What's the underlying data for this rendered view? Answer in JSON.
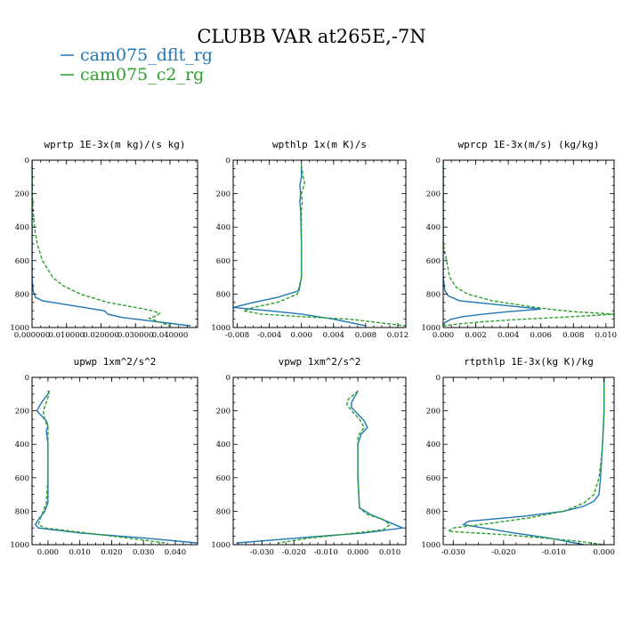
{
  "figure": {
    "title": "CLUBB VAR at265E,-7N"
  },
  "legend": [
    {
      "label": "cam075_dflt_rg",
      "color": "#1f77b4",
      "dash": "solid"
    },
    {
      "label": "cam075_c2_rg",
      "color": "#2ca02c",
      "dash": "dashed"
    }
  ],
  "chart_data": [
    {
      "type": "line",
      "title": "wprtp  1E-3x(m kg)/(s kg)",
      "xlim": [
        0,
        0.048
      ],
      "ylim": [
        1000,
        0
      ],
      "xticks": [
        0.0,
        0.01,
        0.02,
        0.03,
        0.04
      ],
      "xticklabels": [
        "0.000000",
        "0.010000",
        "0.020000",
        "0.030000",
        "0.040000"
      ],
      "yticks": [
        0,
        200,
        400,
        600,
        800,
        1000
      ],
      "yticklabels": [
        "0",
        "200",
        "400",
        "600",
        "800",
        "1000"
      ],
      "series": [
        {
          "name": "cam075_dflt_rg",
          "y": [
            0,
            200,
            400,
            600,
            700,
            780,
            820,
            840,
            870,
            900,
            920,
            940,
            960,
            990
          ],
          "x": [
            0.0,
            0.0,
            0.0,
            0.0,
            0.0,
            0.0003,
            0.001,
            0.003,
            0.012,
            0.021,
            0.022,
            0.026,
            0.034,
            0.046
          ]
        },
        {
          "name": "cam075_c2_rg",
          "y": [
            0,
            200,
            300,
            400,
            500,
            600,
            700,
            750,
            800,
            850,
            880,
            900,
            915,
            930,
            945,
            960,
            990
          ],
          "x": [
            0.0,
            0.0001,
            0.0003,
            0.0007,
            0.0015,
            0.003,
            0.006,
            0.009,
            0.014,
            0.022,
            0.03,
            0.035,
            0.037,
            0.036,
            0.034,
            0.036,
            0.04
          ]
        }
      ]
    },
    {
      "type": "line",
      "title": "wpthlp  1x(m K)/s",
      "xlim": [
        -0.0085,
        0.013
      ],
      "ylim": [
        1000,
        0
      ],
      "xticks": [
        -0.008,
        -0.004,
        0.0,
        0.004,
        0.008,
        0.012
      ],
      "xticklabels": [
        "-0.008",
        "-0.004",
        "0.000",
        "0.004",
        "0.008",
        "0.012"
      ],
      "yticks": [
        0,
        200,
        400,
        600,
        800,
        1000
      ],
      "yticklabels": [
        "0",
        "200",
        "400",
        "600",
        "800",
        "1000"
      ],
      "series": [
        {
          "name": "cam075_dflt_rg",
          "y": [
            30,
            100,
            150,
            200,
            250,
            300,
            500,
            700,
            780,
            820,
            850,
            880,
            900,
            920,
            950,
            990
          ],
          "x": [
            0.0,
            0.0,
            -0.0002,
            -0.0001,
            -0.0002,
            -0.0001,
            0.0,
            0.0,
            -0.0003,
            -0.003,
            -0.006,
            -0.0085,
            -0.004,
            0.0,
            0.004,
            0.008
          ]
        },
        {
          "name": "cam075_c2_rg",
          "y": [
            30,
            100,
            130,
            150,
            200,
            250,
            300,
            500,
            700,
            800,
            850,
            880,
            900,
            920,
            935,
            950,
            990
          ],
          "x": [
            0.0,
            0.0002,
            0.0004,
            0.0003,
            0.0,
            0.0001,
            0.0,
            0.0,
            0.0,
            -0.0005,
            -0.003,
            -0.006,
            -0.0072,
            -0.005,
            0.0,
            0.006,
            0.013
          ]
        }
      ]
    },
    {
      "type": "line",
      "title": "wprcp  1E-3x(m/s) (kg/kg)",
      "xlim": [
        0,
        0.0105
      ],
      "ylim": [
        1000,
        0
      ],
      "xticks": [
        0.0,
        0.002,
        0.004,
        0.006,
        0.008,
        0.01
      ],
      "xticklabels": [
        "0.000",
        "0.002",
        "0.004",
        "0.006",
        "0.008",
        "0.010"
      ],
      "yticks": [
        0,
        200,
        400,
        600,
        800,
        1000
      ],
      "yticklabels": [
        "0",
        "200",
        "400",
        "600",
        "800",
        "1000"
      ],
      "series": [
        {
          "name": "cam075_dflt_rg",
          "y": [
            0,
            500,
            700,
            780,
            810,
            840,
            860,
            880,
            890,
            905,
            920,
            935,
            950,
            970,
            990
          ],
          "x": [
            0.0,
            0.0,
            0.0,
            0.0001,
            0.0003,
            0.001,
            0.003,
            0.005,
            0.006,
            0.004,
            0.0025,
            0.0012,
            0.0005,
            0.0001,
            0.0
          ]
        },
        {
          "name": "cam075_c2_rg",
          "y": [
            0,
            500,
            600,
            700,
            760,
            800,
            840,
            870,
            890,
            905,
            920,
            935,
            950,
            965,
            980,
            990
          ],
          "x": [
            0.0,
            0.0,
            0.0002,
            0.0004,
            0.0008,
            0.0015,
            0.003,
            0.005,
            0.0065,
            0.008,
            0.0105,
            0.008,
            0.005,
            0.0025,
            0.0008,
            0.0
          ]
        }
      ]
    },
    {
      "type": "line",
      "title": "upwp  1xm^2/s^2",
      "xlim": [
        -0.005,
        0.047
      ],
      "ylim": [
        1000,
        0
      ],
      "xticks": [
        0.0,
        0.01,
        0.02,
        0.03,
        0.04
      ],
      "xticklabels": [
        "0.000",
        "0.010",
        "0.020",
        "0.030",
        "0.040"
      ],
      "yticks": [
        0,
        200,
        400,
        600,
        800,
        1000
      ],
      "yticklabels": [
        "0",
        "200",
        "400",
        "600",
        "800",
        "1000"
      ],
      "series": [
        {
          "name": "cam075_dflt_rg",
          "y": [
            80,
            100,
            150,
            200,
            230,
            260,
            290,
            320,
            400,
            600,
            750,
            800,
            850,
            880,
            900,
            930,
            960,
            990
          ],
          "x": [
            0.0005,
            0.0,
            -0.002,
            -0.0035,
            -0.002,
            -0.0005,
            0.0,
            -0.0005,
            0.0,
            0.0,
            0.0,
            -0.001,
            -0.003,
            -0.004,
            -0.003,
            0.01,
            0.03,
            0.047
          ]
        },
        {
          "name": "cam075_c2_rg",
          "y": [
            80,
            100,
            150,
            200,
            250,
            300,
            350,
            400,
            600,
            750,
            800,
            850,
            880,
            900,
            930,
            960,
            990
          ],
          "x": [
            0.0,
            0.0003,
            -0.0005,
            -0.0015,
            -0.001,
            0.0,
            0.0,
            0.0,
            0.0,
            -0.0005,
            -0.0015,
            -0.0025,
            -0.003,
            -0.001,
            0.012,
            0.025,
            0.037
          ]
        }
      ]
    },
    {
      "type": "line",
      "title": "vpwp  1xm^2/s^2",
      "xlim": [
        -0.039,
        0.015
      ],
      "ylim": [
        1000,
        0
      ],
      "xticks": [
        -0.03,
        -0.02,
        -0.01,
        0.0,
        0.01
      ],
      "xticklabels": [
        "-0.030",
        "-0.020",
        "-0.010",
        "0.000",
        "0.010"
      ],
      "yticks": [
        0,
        200,
        400,
        600,
        800,
        1000
      ],
      "yticklabels": [
        "0",
        "200",
        "400",
        "600",
        "800",
        "1000"
      ],
      "series": [
        {
          "name": "cam075_dflt_rg",
          "y": [
            80,
            100,
            150,
            180,
            220,
            260,
            300,
            340,
            400,
            600,
            780,
            820,
            860,
            900,
            930,
            950,
            970,
            990
          ],
          "x": [
            0.0,
            -0.0005,
            -0.002,
            -0.002,
            0.0,
            0.002,
            0.003,
            0.001,
            0.0,
            0.0,
            0.0005,
            0.004,
            0.009,
            0.014,
            0.002,
            -0.012,
            -0.025,
            -0.038
          ]
        },
        {
          "name": "cam075_c2_rg",
          "y": [
            80,
            100,
            130,
            160,
            200,
            250,
            300,
            350,
            400,
            600,
            780,
            820,
            850,
            880,
            910,
            940,
            960,
            990
          ],
          "x": [
            0.0,
            -0.001,
            -0.003,
            -0.0035,
            -0.002,
            0.0005,
            0.002,
            0.0,
            0.0,
            0.0,
            0.0005,
            0.003,
            0.008,
            0.01,
            0.008,
            -0.005,
            -0.015,
            -0.025
          ]
        }
      ]
    },
    {
      "type": "line",
      "title": "rtpthlp  1E-3x(kg K)/kg",
      "xlim": [
        -0.032,
        0.002
      ],
      "ylim": [
        1000,
        0
      ],
      "xticks": [
        -0.03,
        -0.02,
        -0.01,
        0.0
      ],
      "xticklabels": [
        "-0.030",
        "-0.020",
        "-0.010",
        "0.000"
      ],
      "yticks": [
        0,
        200,
        400,
        600,
        800,
        1000
      ],
      "yticklabels": [
        "0",
        "200",
        "400",
        "600",
        "800",
        "1000"
      ],
      "series": [
        {
          "name": "cam075_dflt_rg",
          "y": [
            0,
            200,
            400,
            500,
            600,
            700,
            740,
            770,
            800,
            830,
            860,
            880,
            900,
            930,
            960,
            1000
          ],
          "x": [
            0.0,
            0.0,
            -0.0003,
            -0.0005,
            -0.0007,
            -0.001,
            -0.002,
            -0.004,
            -0.008,
            -0.016,
            -0.027,
            -0.028,
            -0.024,
            -0.018,
            -0.011,
            -0.004
          ]
        },
        {
          "name": "cam075_c2_rg",
          "y": [
            0,
            200,
            400,
            500,
            600,
            700,
            750,
            800,
            840,
            870,
            900,
            920,
            940,
            960,
            980,
            1000
          ],
          "x": [
            0.0,
            0.0,
            -0.0003,
            -0.0006,
            -0.001,
            -0.002,
            -0.004,
            -0.008,
            -0.015,
            -0.022,
            -0.03,
            -0.031,
            -0.02,
            -0.012,
            -0.005,
            0.0
          ]
        }
      ]
    }
  ]
}
